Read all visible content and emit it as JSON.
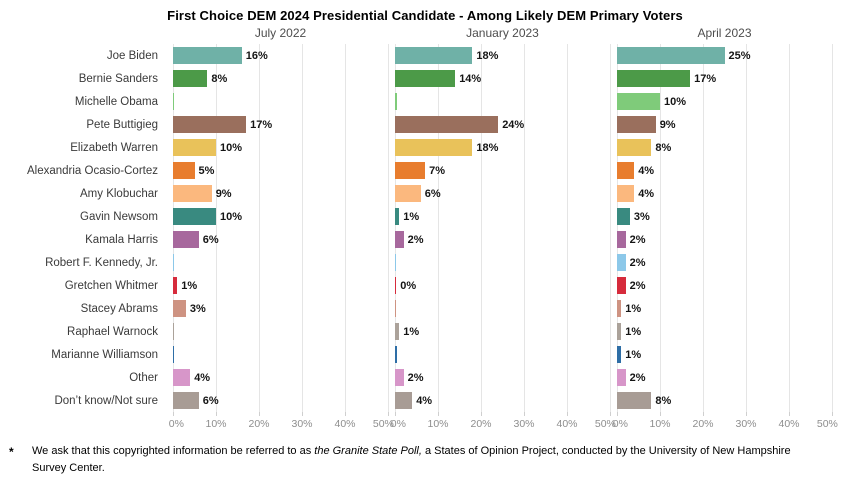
{
  "title": "First Choice DEM 2024 Presidential Candidate - Among Likely DEM Primary Voters",
  "chart_data": {
    "type": "bar",
    "orientation": "horizontal",
    "grid": true,
    "categories": [
      "Joe Biden",
      "Bernie Sanders",
      "Michelle Obama",
      "Pete Buttigieg",
      "Elizabeth Warren",
      "Alexandria Ocasio-Cortez",
      "Amy Klobuchar",
      "Gavin Newsom",
      "Kamala Harris",
      "Robert F. Kennedy, Jr.",
      "Gretchen Whitmer",
      "Stacey Abrams",
      "Raphael Warnock",
      "Marianne Williamson",
      "Other",
      "Don’t know/Not sure"
    ],
    "colors": [
      "#6FB1A7",
      "#4C9A48",
      "#7FCB7A",
      "#9A6F5D",
      "#E9C25A",
      "#E87D2E",
      "#FBB87E",
      "#398A80",
      "#A7689D",
      "#8CC8E9",
      "#D62B3C",
      "#CE9382",
      "#ABA29A",
      "#2E6EA6",
      "#D796C9",
      "#A89C95"
    ],
    "x_axis": {
      "range": [
        0,
        50
      ],
      "ticks": [
        "0%",
        "10%",
        "20%",
        "30%",
        "40%",
        "50%"
      ]
    },
    "series": [
      {
        "name": "July 2022",
        "values": [
          16,
          8,
          0.3,
          17,
          10,
          5,
          9,
          10,
          6,
          0.2,
          1,
          3,
          0.2,
          0.3,
          4,
          6
        ],
        "labels": [
          "16%",
          "8%",
          "",
          "17%",
          "10%",
          "5%",
          "9%",
          "10%",
          "6%",
          "",
          "1%",
          "3%",
          "",
          "",
          "4%",
          "6%"
        ]
      },
      {
        "name": "January 2023",
        "values": [
          18,
          14,
          0.4,
          24,
          18,
          7,
          6,
          1,
          2,
          0.3,
          0.3,
          0.3,
          1,
          0.4,
          2,
          4
        ],
        "labels": [
          "18%",
          "14%",
          "",
          "24%",
          "18%",
          "7%",
          "6%",
          "1%",
          "2%",
          "",
          "0%",
          "",
          "1%",
          "",
          "2%",
          "4%"
        ]
      },
      {
        "name": "April 2023",
        "values": [
          25,
          17,
          10,
          9,
          8,
          4,
          4,
          3,
          2,
          2,
          2,
          1,
          1,
          1,
          2,
          8
        ],
        "labels": [
          "25%",
          "17%",
          "10%",
          "9%",
          "8%",
          "4%",
          "4%",
          "3%",
          "2%",
          "2%",
          "2%",
          "1%",
          "1%",
          "1%",
          "2%",
          "8%"
        ]
      }
    ],
    "value_labels_position": "right-of-bar",
    "gridline_color": "#e5e5e5"
  },
  "footnote": {
    "marker": "*",
    "parts": [
      {
        "text": "We ask that this copyrighted information be referred to as ",
        "italic": false
      },
      {
        "text": "the Granite State Poll,",
        "italic": true
      },
      {
        "text": " a States of Opinion Project, conducted by the University of New Hampshire Survey Center.",
        "italic": false
      }
    ]
  }
}
